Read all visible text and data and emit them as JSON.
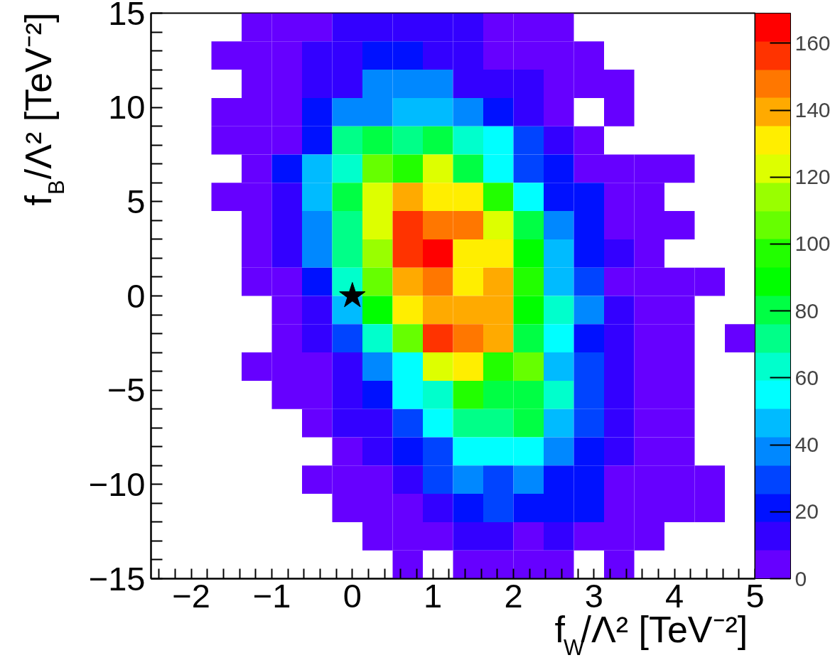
{
  "chart_data": {
    "type": "heatmap",
    "xlabel": "f$_{W}$/Λ² [TeV⁻²]",
    "ylabel": "f$_{B}$/Λ² [TeV⁻²]",
    "x": [
      -2.3125,
      -1.9375,
      -1.5625,
      -1.1875,
      -0.8125,
      -0.4375,
      -0.0625,
      0.3125,
      0.6875,
      1.0625,
      1.4375,
      1.8125,
      2.1875,
      2.5625,
      2.9375,
      3.3125,
      3.6875,
      4.0625,
      4.4375,
      4.8125
    ],
    "y": [
      14.25,
      12.75,
      11.25,
      9.75,
      8.25,
      6.75,
      5.25,
      3.75,
      2.25,
      0.75,
      -0.75,
      -2.25,
      -3.75,
      -5.25,
      -6.75,
      -8.25,
      -9.75,
      -11.25,
      -12.75,
      -14.25
    ],
    "cells": [
      [
        null,
        null,
        null,
        4,
        4,
        4,
        13,
        13,
        13,
        13,
        13,
        4,
        4,
        4,
        null,
        null,
        null,
        null,
        null,
        null
      ],
      [
        null,
        null,
        4,
        4,
        4,
        13,
        13,
        21,
        21,
        13,
        13,
        4,
        4,
        4,
        4,
        null,
        null,
        null,
        null,
        null
      ],
      [
        null,
        null,
        null,
        4,
        4,
        13,
        13,
        38,
        38,
        38,
        13,
        13,
        13,
        4,
        4,
        4,
        null,
        null,
        null,
        null
      ],
      [
        null,
        null,
        4,
        4,
        4,
        21,
        38,
        38,
        46,
        46,
        38,
        21,
        13,
        4,
        null,
        4,
        null,
        null,
        null,
        null
      ],
      [
        null,
        null,
        4,
        4,
        4,
        21,
        72,
        80,
        72,
        80,
        63,
        55,
        30,
        13,
        4,
        null,
        null,
        null,
        null,
        null
      ],
      [
        null,
        null,
        null,
        4,
        21,
        46,
        63,
        106,
        97,
        122,
        80,
        55,
        30,
        21,
        4,
        4,
        4,
        4,
        null,
        null
      ],
      [
        null,
        null,
        4,
        4,
        13,
        46,
        80,
        122,
        139,
        131,
        131,
        97,
        55,
        21,
        21,
        4,
        4,
        null,
        null,
        null
      ],
      [
        null,
        null,
        null,
        4,
        13,
        38,
        72,
        122,
        156,
        148,
        148,
        122,
        80,
        38,
        21,
        4,
        4,
        4,
        null,
        null
      ],
      [
        null,
        null,
        null,
        4,
        13,
        38,
        72,
        114,
        156,
        165,
        131,
        131,
        89,
        46,
        21,
        13,
        4,
        null,
        null,
        null
      ],
      [
        null,
        null,
        null,
        4,
        4,
        21,
        63,
        106,
        139,
        148,
        131,
        139,
        97,
        46,
        30,
        4,
        4,
        4,
        4,
        null
      ],
      [
        null,
        null,
        null,
        null,
        4,
        13,
        46,
        89,
        131,
        139,
        139,
        139,
        89,
        63,
        38,
        13,
        4,
        4,
        null,
        null
      ],
      [
        null,
        null,
        null,
        null,
        4,
        13,
        30,
        63,
        106,
        156,
        148,
        139,
        80,
        55,
        21,
        13,
        4,
        4,
        null,
        4
      ],
      [
        null,
        null,
        null,
        4,
        4,
        4,
        13,
        38,
        55,
        122,
        131,
        97,
        106,
        46,
        30,
        13,
        4,
        4,
        null,
        null
      ],
      [
        null,
        null,
        null,
        null,
        4,
        4,
        13,
        21,
        55,
        63,
        97,
        80,
        80,
        63,
        30,
        13,
        4,
        4,
        null,
        null
      ],
      [
        null,
        null,
        null,
        null,
        null,
        4,
        13,
        13,
        30,
        55,
        72,
        72,
        80,
        46,
        30,
        13,
        4,
        4,
        null,
        null
      ],
      [
        null,
        null,
        null,
        null,
        null,
        null,
        4,
        13,
        21,
        30,
        55,
        55,
        55,
        38,
        21,
        13,
        4,
        4,
        null,
        null
      ],
      [
        null,
        null,
        null,
        null,
        null,
        4,
        4,
        4,
        13,
        30,
        38,
        30,
        38,
        21,
        21,
        4,
        4,
        4,
        4,
        null
      ],
      [
        null,
        null,
        null,
        null,
        null,
        null,
        4,
        4,
        4,
        13,
        21,
        30,
        21,
        21,
        21,
        4,
        4,
        4,
        4,
        null
      ],
      [
        null,
        null,
        null,
        null,
        null,
        null,
        null,
        4,
        4,
        4,
        13,
        13,
        4,
        13,
        4,
        4,
        4,
        null,
        null,
        null
      ],
      [
        null,
        null,
        null,
        null,
        null,
        null,
        null,
        null,
        4,
        null,
        4,
        4,
        4,
        4,
        null,
        4,
        null,
        null,
        null,
        null
      ]
    ],
    "clim": [
      0,
      169
    ],
    "cticks": [
      0,
      20,
      40,
      60,
      80,
      100,
      120,
      140,
      160
    ],
    "xlim": [
      -2.5,
      5
    ],
    "ylim": [
      -15,
      15
    ],
    "xticks": [
      {
        "value": -2.4,
        "label": null
      },
      {
        "value": -2.2,
        "label": null
      },
      {
        "value": -2,
        "label": "−2"
      },
      {
        "value": -1.8,
        "label": null
      },
      {
        "value": -1.6,
        "label": null
      },
      {
        "value": -1.4,
        "label": null
      },
      {
        "value": -1.2,
        "label": null
      },
      {
        "value": -1,
        "label": "−1"
      },
      {
        "value": -0.8,
        "label": null
      },
      {
        "value": -0.6,
        "label": null
      },
      {
        "value": -0.4,
        "label": null
      },
      {
        "value": -0.2,
        "label": null
      },
      0,
      {
        "value": 0.2,
        "label": null
      },
      {
        "value": 0.4,
        "label": null
      },
      {
        "value": 0.6,
        "label": null
      },
      {
        "value": 0.8,
        "label": null
      },
      1,
      {
        "value": 1.2,
        "label": null
      },
      {
        "value": 1.4,
        "label": null
      },
      {
        "value": 1.6,
        "label": null
      },
      {
        "value": 1.8,
        "label": null
      },
      2,
      {
        "value": 2.2,
        "label": null
      },
      {
        "value": 2.4,
        "label": null
      },
      {
        "value": 2.6,
        "label": null
      },
      {
        "value": 2.8,
        "label": null
      },
      3,
      {
        "value": 3.2,
        "label": null
      },
      {
        "value": 3.4,
        "label": null
      },
      {
        "value": 3.6,
        "label": null
      },
      {
        "value": 3.8,
        "label": null
      },
      4,
      {
        "value": 4.2,
        "label": null
      },
      {
        "value": 4.4,
        "label": null
      },
      {
        "value": 4.6,
        "label": null
      },
      {
        "value": 4.8,
        "label": null
      },
      5
    ],
    "yticks": [
      {
        "value": -15,
        "label": "−15"
      },
      {
        "value": -14,
        "label": null
      },
      {
        "value": -13,
        "label": null
      },
      {
        "value": -12,
        "label": null
      },
      {
        "value": -11,
        "label": null
      },
      {
        "value": -10,
        "label": "−10"
      },
      {
        "value": -9,
        "label": null
      },
      {
        "value": -8,
        "label": null
      },
      {
        "value": -7,
        "label": null
      },
      {
        "value": -6,
        "label": null
      },
      {
        "value": -5,
        "label": "−5"
      },
      {
        "value": -4,
        "label": null
      },
      {
        "value": -3,
        "label": null
      },
      {
        "value": -2,
        "label": null
      },
      {
        "value": -1,
        "label": null
      },
      0,
      {
        "value": 1,
        "label": null
      },
      {
        "value": 2,
        "label": null
      },
      {
        "value": 3,
        "label": null
      },
      {
        "value": 4,
        "label": null
      },
      5,
      {
        "value": 6,
        "label": null
      },
      {
        "value": 7,
        "label": null
      },
      {
        "value": 8,
        "label": null
      },
      {
        "value": 9,
        "label": null
      },
      10,
      {
        "value": 11,
        "label": null
      },
      {
        "value": 12,
        "label": null
      },
      {
        "value": 13,
        "label": null
      },
      {
        "value": 14,
        "label": null
      },
      15
    ],
    "series": [
      {
        "type": "scatter",
        "x": [
          0
        ],
        "values": [
          0
        ],
        "color": "#000000",
        "marker": "star"
      }
    ]
  }
}
